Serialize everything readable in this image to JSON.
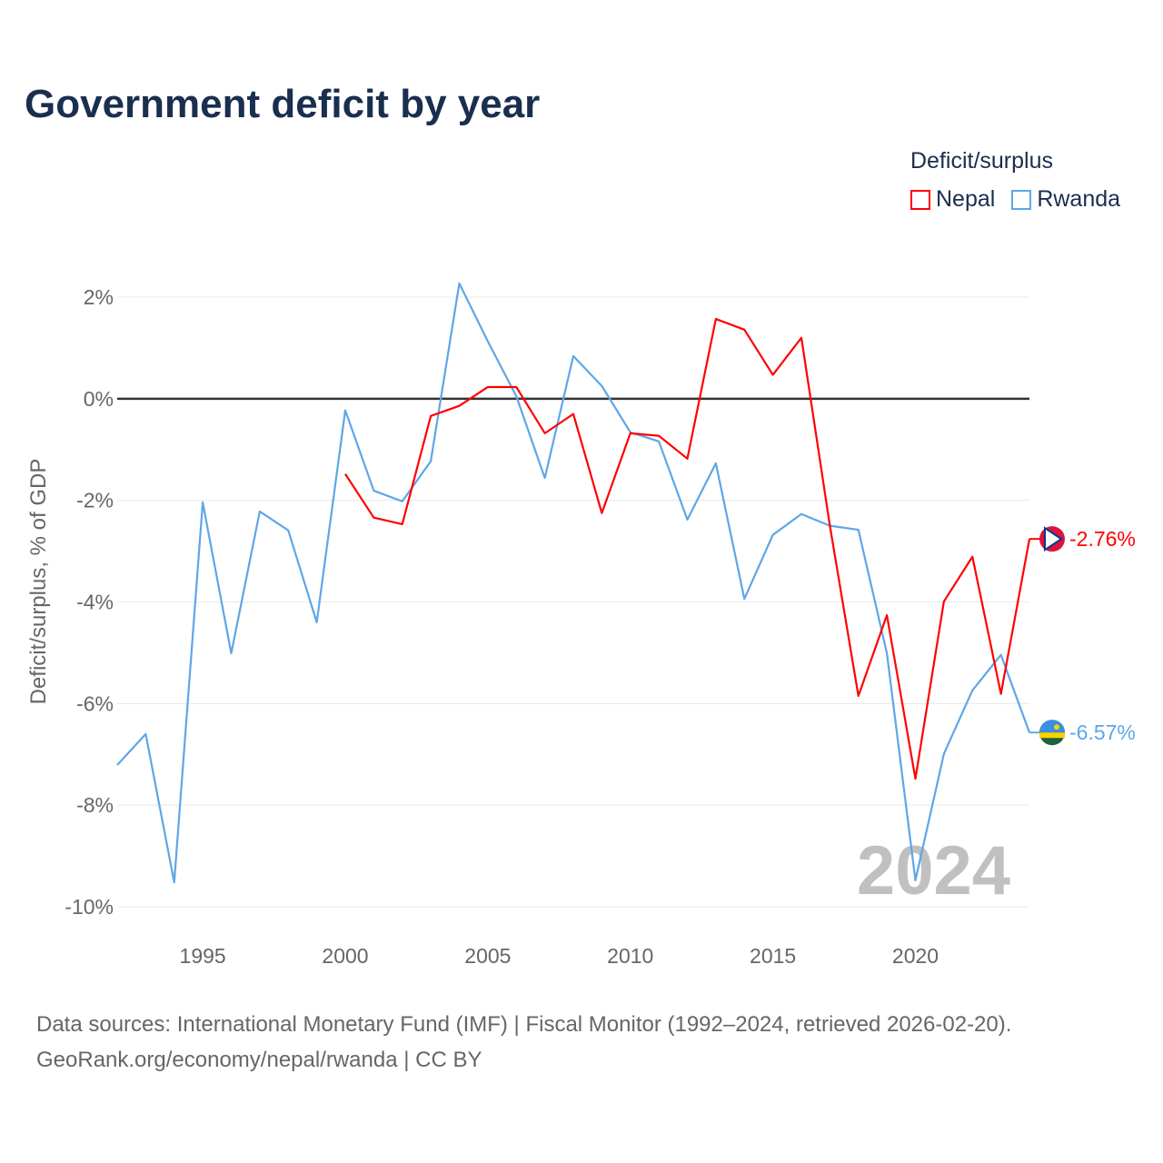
{
  "chart_data": {
    "type": "line",
    "title": "Government deficit by year",
    "xlabel": "",
    "ylabel": "Deficit/surplus, % of GDP",
    "xlim": [
      1992,
      2024
    ],
    "ylim": [
      -10,
      2
    ],
    "x_ticks": [
      1995,
      2000,
      2005,
      2010,
      2015,
      2020
    ],
    "x_tick_labels": [
      "1995",
      "2000",
      "2005",
      "2010",
      "2015",
      "2020"
    ],
    "y_ticks": [
      2,
      0,
      -2,
      -4,
      -6,
      -8,
      -10
    ],
    "y_tick_labels": [
      "2%",
      "0%",
      "-2%",
      "-4%",
      "-6%",
      "-8%",
      "-10%"
    ],
    "grid": true,
    "legend_title": "Deficit/surplus",
    "legend_position": "top-right",
    "watermark_year": "2024",
    "series": [
      {
        "name": "Nepal",
        "color": "#ff0000",
        "end_label": "-2.76%",
        "x": [
          2000,
          2001,
          2002,
          2003,
          2004,
          2005,
          2006,
          2007,
          2008,
          2009,
          2010,
          2011,
          2012,
          2013,
          2014,
          2015,
          2016,
          2017,
          2018,
          2019,
          2020,
          2021,
          2022,
          2023,
          2024
        ],
        "values": [
          -1.48,
          -2.34,
          -2.47,
          -0.34,
          -0.14,
          0.23,
          0.23,
          -0.68,
          -0.3,
          -2.25,
          -0.68,
          -0.73,
          -1.18,
          1.57,
          1.36,
          0.47,
          1.2,
          -2.5,
          -5.85,
          -4.26,
          -7.48,
          -3.99,
          -3.11,
          -5.81,
          -2.76
        ]
      },
      {
        "name": "Rwanda",
        "color": "#5ea6e8",
        "end_label": "-6.57%",
        "x": [
          1992,
          1993,
          1994,
          1995,
          1996,
          1997,
          1998,
          1999,
          2000,
          2001,
          2002,
          2003,
          2004,
          2005,
          2006,
          2007,
          2008,
          2009,
          2010,
          2011,
          2012,
          2013,
          2014,
          2015,
          2016,
          2017,
          2018,
          2019,
          2020,
          2021,
          2022,
          2023,
          2024
        ],
        "values": [
          -7.21,
          -6.6,
          -9.52,
          -2.04,
          -5.01,
          -2.22,
          -2.59,
          -4.4,
          -0.23,
          -1.81,
          -2.02,
          -1.23,
          2.27,
          1.13,
          0.05,
          -1.56,
          0.84,
          0.25,
          -0.66,
          -0.84,
          -2.38,
          -1.27,
          -3.94,
          -2.68,
          -2.27,
          -2.5,
          -2.58,
          -5.01,
          -9.48,
          -6.99,
          -5.74,
          -5.04,
          -6.57
        ]
      }
    ]
  },
  "source": {
    "line1": "Data sources: International Monetary Fund (IMF) | Fiscal Monitor (1992–2024, retrieved 2026-02-20).",
    "line2": "GeoRank.org/economy/nepal/rwanda | CC BY"
  }
}
